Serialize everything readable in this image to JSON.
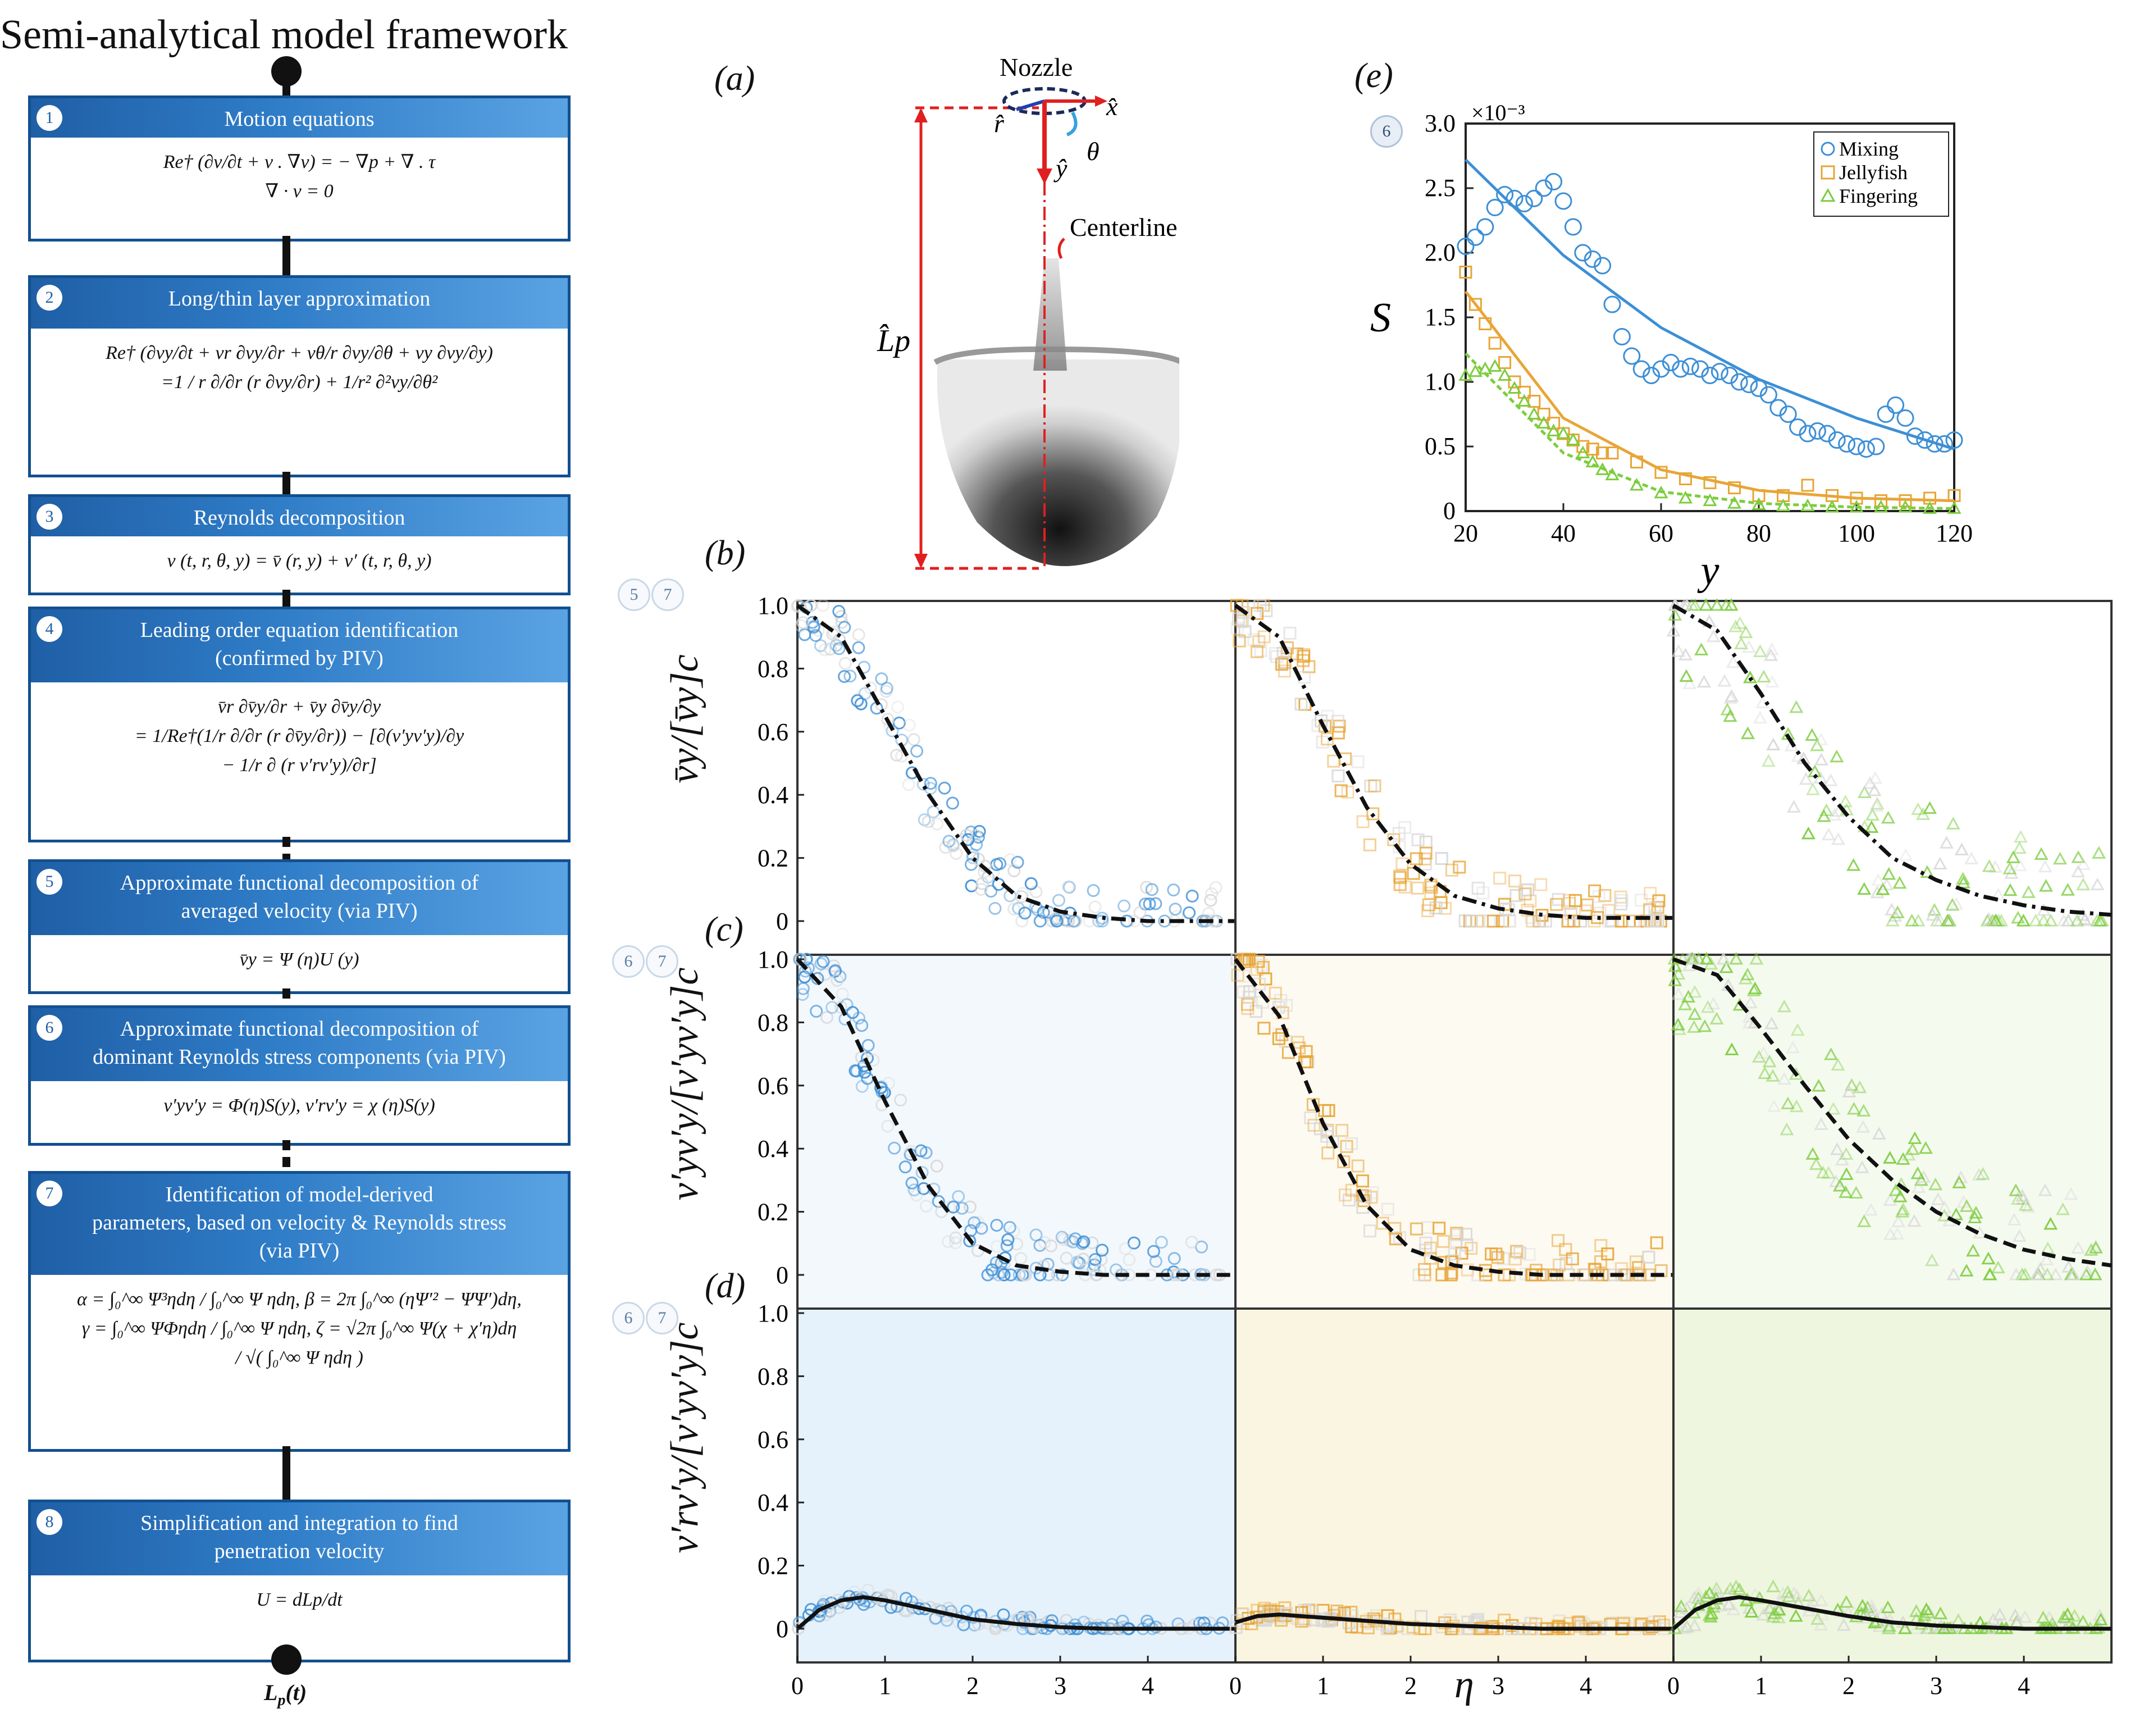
{
  "framework": {
    "title": "Semi-analytical model framework",
    "end_label": "L",
    "end_label_sub": "p",
    "end_label_tail": "(t)",
    "steps": [
      {
        "num": "1",
        "title": "Motion equations",
        "lines": [
          "Re† (∂v/∂t + v . ∇v) = − ∇p + ∇ . τ",
          "∇ · v = 0"
        ]
      },
      {
        "num": "2",
        "title": "Long/thin layer approximation",
        "lines": [
          "Re† (∂vy/∂t + vr ∂vy/∂r + vθ/r ∂vy/∂θ  + vy ∂vy/∂y)",
          "=1 / r ∂/∂r  (r ∂vy/∂r)  + 1/r² ∂²vy/∂θ²"
        ]
      },
      {
        "num": "3",
        "title": "Reynolds decomposition",
        "lines": [
          "v (t, r, θ, y) = v̄ (r, y)  + v′ (t, r, θ, y)"
        ]
      },
      {
        "num": "4",
        "title": "Leading order equation identification\n(confirmed by PIV)",
        "lines": [
          "v̄r  ∂v̄y/∂r + v̄y ∂v̄y/∂y",
          "= 1/Re†(1/r ∂/∂r  (r ∂v̄y/∂r)) − [∂(v′yv′y)/∂y",
          "− 1/r ∂ (r v′rv′y)/∂r]"
        ]
      },
      {
        "num": "5",
        "title": "Approximate functional decomposition of\naveraged velocity (via PIV)",
        "lines": [
          "v̄y = Ψ (η)U (y)"
        ]
      },
      {
        "num": "6",
        "title": "Approximate functional decomposition of\ndominant Reynolds stress components (via PIV)",
        "lines": [
          "v′yv′y = Φ(η)S(y),  v′rv′y = χ (η)S(y)"
        ]
      },
      {
        "num": "7",
        "title": "Identification of model-derived\nparameters, based on velocity & Reynolds stress\n(via PIV)",
        "lines": [
          "α = ∫₀^∞ Ψ³ηdη / ∫₀^∞ Ψ ηdη,  β = 2π ∫₀^∞ (ηΨ′² − ΨΨ′)dη,",
          "γ = ∫₀^∞ ΨΦηdη / ∫₀^∞ Ψ ηdη,  ζ = √2π ∫₀^∞ Ψ(χ + χ′η)dη",
          "/ √( ∫₀^∞ Ψ ηdη )"
        ]
      },
      {
        "num": "8",
        "title": "Simplification and integration to find\npenetration velocity",
        "lines": [
          "U = dLp/dt"
        ]
      }
    ]
  },
  "panel_a": {
    "label": "(a)",
    "nozzle": "Nozzle",
    "centerline": "Centerline",
    "x_hat": "x̂",
    "r_hat": "r̂",
    "y_hat": "ŷ",
    "theta": "θ",
    "length": "L̂p"
  },
  "panel_e": {
    "label": "(e)",
    "badge": "6",
    "ylabel": "S",
    "xlabel": "y",
    "exponent": "×10⁻³",
    "x_ticks": [
      "20",
      "40",
      "60",
      "80",
      "100",
      "120"
    ],
    "y_ticks": [
      "0",
      "0.5",
      "1.0",
      "1.5",
      "2.0",
      "2.5",
      "3.0"
    ],
    "legend": [
      "Mixing",
      "Jellyfish",
      "Fingering"
    ],
    "colors": {
      "mixing": "#3d8fd6",
      "jellyfish": "#e8a537",
      "fingering": "#7ccd3e"
    }
  },
  "grid": {
    "label_b": "(b)",
    "label_c": "(c)",
    "label_d": "(d)",
    "badges_b": [
      "5",
      "7"
    ],
    "badges_c": [
      "6",
      "7"
    ],
    "badges_d": [
      "6",
      "7"
    ],
    "ylabel_b": "v̄y/[v̄y]c",
    "ylabel_c": "v′yv′y/[v′yv′y]c",
    "ylabel_d": "v′rv′y/[v′yv′y]c",
    "xlabel": "η",
    "y_ticks": [
      "0",
      "0.2",
      "0.4",
      "0.6",
      "0.8",
      "1.0"
    ],
    "x_ticks": [
      "0",
      "1",
      "2",
      "3",
      "4"
    ]
  },
  "chart_data": [
    {
      "type": "scatter",
      "panel": "e",
      "xlabel": "y",
      "ylabel": "S",
      "xlim": [
        20,
        120
      ],
      "ylim": [
        0,
        3.0
      ],
      "y_scale_note": "×10⁻³",
      "series": [
        {
          "name": "Mixing",
          "marker": "circle",
          "x": [
            20,
            22,
            24,
            26,
            28,
            30,
            32,
            34,
            36,
            38,
            40,
            42,
            44,
            46,
            48,
            50,
            52,
            54,
            56,
            58,
            60,
            62,
            64,
            66,
            68,
            70,
            72,
            74,
            76,
            78,
            80,
            82,
            84,
            86,
            88,
            90,
            92,
            94,
            96,
            98,
            100,
            102,
            104,
            106,
            108,
            110,
            112,
            114,
            116,
            118,
            120
          ],
          "y": [
            2.05,
            2.12,
            2.2,
            2.35,
            2.45,
            2.42,
            2.38,
            2.42,
            2.5,
            2.55,
            2.4,
            2.2,
            2.0,
            1.95,
            1.9,
            1.6,
            1.35,
            1.2,
            1.1,
            1.05,
            1.1,
            1.15,
            1.1,
            1.12,
            1.1,
            1.05,
            1.08,
            1.05,
            1.0,
            0.98,
            0.95,
            0.9,
            0.8,
            0.75,
            0.65,
            0.6,
            0.62,
            0.6,
            0.55,
            0.52,
            0.5,
            0.48,
            0.5,
            0.75,
            0.82,
            0.72,
            0.58,
            0.55,
            0.52,
            0.52,
            0.55
          ],
          "fit_x": [
            20,
            40,
            60,
            80,
            100,
            120
          ],
          "fit_y": [
            2.72,
            1.98,
            1.42,
            1.02,
            0.72,
            0.48
          ]
        },
        {
          "name": "Jellyfish",
          "marker": "square",
          "x": [
            20,
            22,
            24,
            26,
            28,
            30,
            32,
            34,
            36,
            38,
            40,
            42,
            44,
            46,
            48,
            50,
            55,
            60,
            65,
            70,
            75,
            80,
            85,
            90,
            95,
            100,
            105,
            110,
            115,
            120
          ],
          "y": [
            1.85,
            1.6,
            1.45,
            1.3,
            1.15,
            1.0,
            0.92,
            0.85,
            0.75,
            0.68,
            0.6,
            0.55,
            0.5,
            0.48,
            0.45,
            0.45,
            0.38,
            0.3,
            0.25,
            0.22,
            0.18,
            0.12,
            0.12,
            0.2,
            0.12,
            0.1,
            0.08,
            0.08,
            0.1,
            0.12
          ],
          "fit_x": [
            20,
            40,
            60,
            80,
            100,
            120
          ],
          "fit_y": [
            1.7,
            0.72,
            0.32,
            0.16,
            0.1,
            0.08
          ]
        },
        {
          "name": "Fingering",
          "marker": "triangle",
          "x": [
            20,
            22,
            24,
            26,
            28,
            30,
            32,
            34,
            36,
            38,
            40,
            42,
            44,
            46,
            48,
            50,
            55,
            60,
            65,
            70,
            75,
            80,
            85,
            90,
            95,
            100,
            105,
            110,
            115,
            120
          ],
          "y": [
            1.05,
            1.08,
            1.1,
            1.12,
            1.05,
            0.95,
            0.85,
            0.75,
            0.68,
            0.62,
            0.6,
            0.55,
            0.45,
            0.38,
            0.32,
            0.28,
            0.2,
            0.14,
            0.1,
            0.08,
            0.06,
            0.05,
            0.04,
            0.04,
            0.03,
            0.03,
            0.03,
            0.03,
            0.02,
            0.02
          ],
          "fit_x": [
            20,
            40,
            60,
            80,
            100,
            120
          ],
          "fit_y": [
            1.22,
            0.45,
            0.15,
            0.06,
            0.03,
            0.02
          ]
        }
      ]
    },
    {
      "type": "scatter",
      "panel": "b",
      "xlabel": "η",
      "ylabel": "v̄y/[v̄y]c",
      "xlim": [
        0,
        5
      ],
      "ylim": [
        0,
        1.0
      ],
      "series": [
        {
          "name": "Mixing",
          "fit_x": [
            0,
            0.5,
            1,
            1.5,
            2,
            2.5,
            3,
            3.5,
            4,
            4.5,
            5
          ],
          "fit_y": [
            1.0,
            0.9,
            0.65,
            0.4,
            0.2,
            0.08,
            0.03,
            0.01,
            0.0,
            0.0,
            0.0
          ]
        },
        {
          "name": "Jellyfish",
          "fit_x": [
            0,
            0.5,
            1,
            1.5,
            2,
            2.5,
            3,
            3.5,
            4,
            4.5,
            5
          ],
          "fit_y": [
            1.0,
            0.9,
            0.62,
            0.36,
            0.18,
            0.08,
            0.04,
            0.02,
            0.01,
            0.01,
            0.01
          ]
        },
        {
          "name": "Fingering",
          "fit_x": [
            0,
            0.5,
            1,
            1.5,
            2,
            2.5,
            3,
            3.5,
            4,
            4.5,
            5
          ],
          "fit_y": [
            1.0,
            0.92,
            0.72,
            0.5,
            0.33,
            0.2,
            0.13,
            0.08,
            0.05,
            0.03,
            0.02
          ]
        }
      ]
    },
    {
      "type": "scatter",
      "panel": "c",
      "xlabel": "η",
      "ylabel": "v′yv′y/[v′yv′y]c",
      "xlim": [
        0,
        5
      ],
      "ylim": [
        0,
        1.0
      ],
      "series": [
        {
          "name": "Mixing",
          "fit_x": [
            0,
            0.5,
            1,
            1.5,
            2,
            2.5,
            3,
            3.5,
            4,
            4.5,
            5
          ],
          "fit_y": [
            1.0,
            0.85,
            0.55,
            0.28,
            0.1,
            0.03,
            0.01,
            0.0,
            0.0,
            0.0,
            0.0
          ]
        },
        {
          "name": "Jellyfish",
          "fit_x": [
            0,
            0.5,
            1,
            1.5,
            2,
            2.5,
            3,
            3.5,
            4,
            4.5,
            5
          ],
          "fit_y": [
            1.0,
            0.82,
            0.48,
            0.22,
            0.08,
            0.03,
            0.01,
            0.0,
            0.0,
            0.0,
            0.0
          ]
        },
        {
          "name": "Fingering",
          "fit_x": [
            0,
            0.5,
            1,
            1.5,
            2,
            2.5,
            3,
            3.5,
            4,
            4.5,
            5
          ],
          "fit_y": [
            1.0,
            0.95,
            0.78,
            0.6,
            0.43,
            0.3,
            0.2,
            0.13,
            0.08,
            0.05,
            0.03
          ]
        }
      ]
    },
    {
      "type": "scatter",
      "panel": "d",
      "xlabel": "η",
      "ylabel": "v′rv′y/[v′yv′y]c",
      "xlim": [
        0,
        5
      ],
      "ylim": [
        0,
        1.0
      ],
      "series": [
        {
          "name": "Mixing",
          "fit_x": [
            0,
            0.25,
            0.5,
            0.75,
            1,
            1.5,
            2,
            2.5,
            3,
            3.5,
            4,
            4.5,
            5
          ],
          "fit_y": [
            0.0,
            0.06,
            0.09,
            0.1,
            0.09,
            0.06,
            0.03,
            0.015,
            0.005,
            0.0,
            0.0,
            0.0,
            0.0
          ]
        },
        {
          "name": "Jellyfish",
          "fit_x": [
            0,
            0.25,
            0.5,
            0.75,
            1,
            1.5,
            2,
            2.5,
            3,
            3.5,
            4,
            4.5,
            5
          ],
          "fit_y": [
            0.02,
            0.04,
            0.045,
            0.04,
            0.035,
            0.025,
            0.015,
            0.01,
            0.005,
            0.0,
            0.0,
            0.0,
            0.0
          ]
        },
        {
          "name": "Fingering",
          "fit_x": [
            0,
            0.25,
            0.5,
            0.75,
            1,
            1.5,
            2,
            2.5,
            3,
            3.5,
            4,
            4.5,
            5
          ],
          "fit_y": [
            0.0,
            0.06,
            0.09,
            0.1,
            0.09,
            0.065,
            0.04,
            0.02,
            0.01,
            0.005,
            0.0,
            0.0,
            0.0
          ]
        }
      ]
    }
  ]
}
